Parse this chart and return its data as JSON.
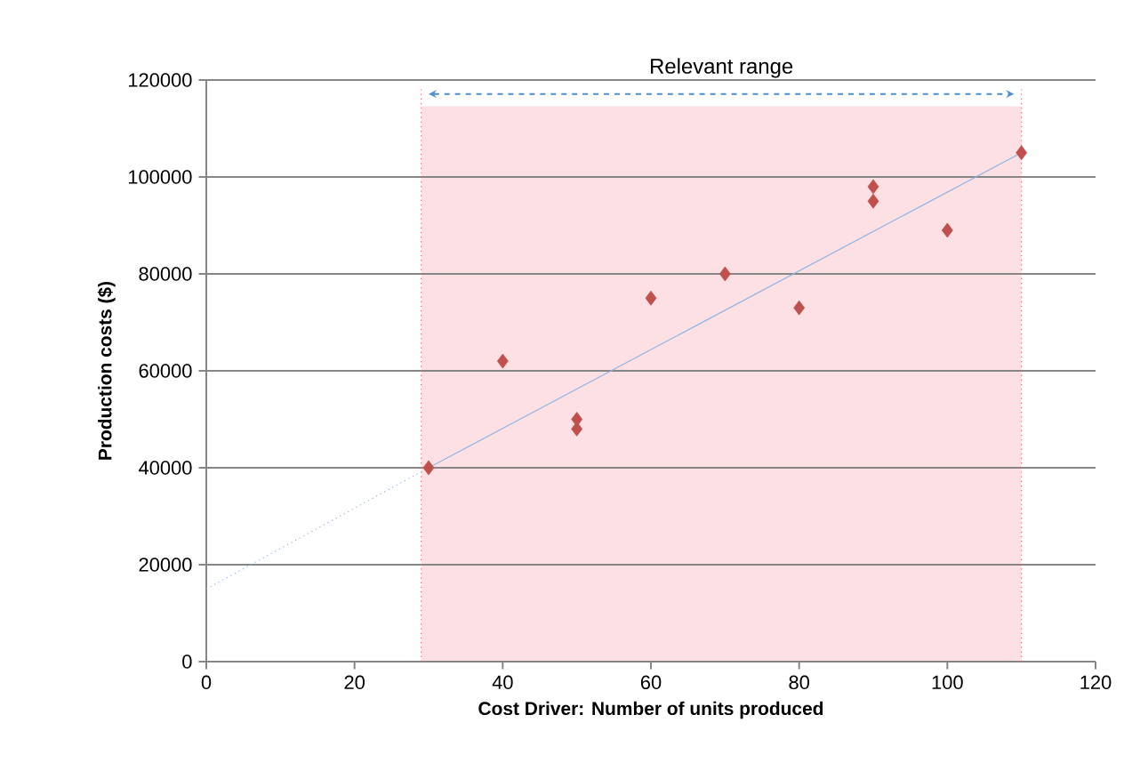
{
  "chart_data": {
    "type": "scatter",
    "xlabel": "Cost Driver: Number of units produced",
    "ylabel": "Production costs ($)",
    "xlim": [
      0,
      120
    ],
    "ylim": [
      0,
      120000
    ],
    "xticks": [
      0,
      20,
      40,
      60,
      80,
      100,
      120
    ],
    "yticks": [
      0,
      20000,
      40000,
      60000,
      80000,
      100000,
      120000
    ],
    "grid": "y",
    "marker": "diamond",
    "series": [
      {
        "color": "#c0504d",
        "x": [
          30,
          40,
          50,
          50,
          60,
          70,
          80,
          90,
          90,
          100,
          110
        ],
        "values": [
          40000,
          62000,
          50000,
          48000,
          75000,
          80000,
          73000,
          98000,
          95000,
          89000,
          105000
        ]
      },
      {
        "type": "line",
        "color": "#8eb4e3",
        "marker": "none",
        "line_style": "dotted",
        "x": [
          0,
          30
        ],
        "values": [
          15000,
          40000
        ]
      },
      {
        "type": "line",
        "color": "#8eb4e3",
        "marker": "none",
        "line_style": "solid",
        "x": [
          30,
          110
        ],
        "values": [
          40000,
          105000
        ]
      }
    ],
    "bands": [
      {
        "axis": "x",
        "from": 29,
        "to": 110,
        "label": "Relevant range",
        "color": "#fde0e4"
      }
    ],
    "ref_lines": [
      {
        "axis": "x",
        "value": 29,
        "color": "#ff5a5a",
        "line_style": "dotted"
      },
      {
        "axis": "x",
        "value": 110,
        "color": "#ff5a5a",
        "line_style": "dotted"
      }
    ]
  }
}
